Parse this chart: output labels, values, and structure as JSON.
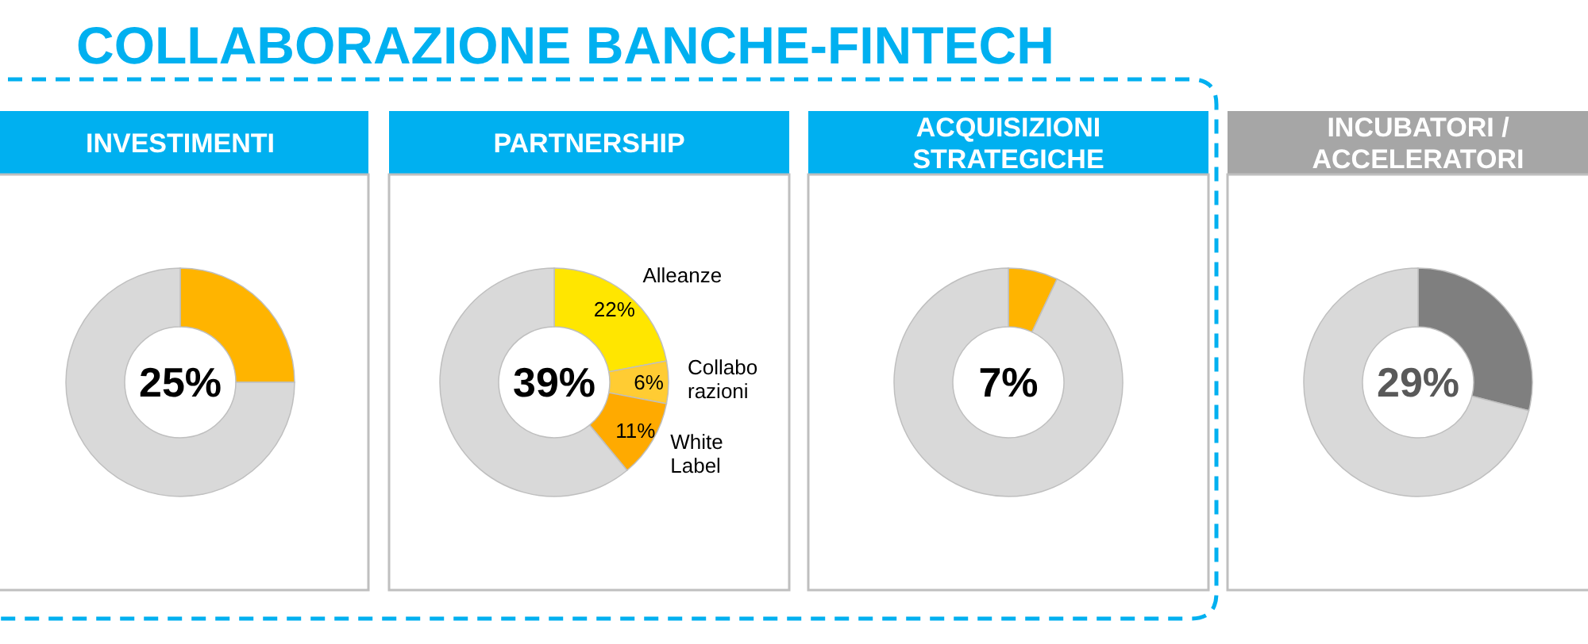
{
  "chart_data": [
    {
      "type": "other",
      "title": "COLLABORAZIONE BANCHE-FINTECH"
    },
    {
      "type": "donut",
      "title": "INVESTIMENTI",
      "categories": [
        null,
        null
      ],
      "values": [
        25,
        75
      ],
      "colors": [
        "#ffb400",
        "#d9d9d9"
      ],
      "annotations": [
        "25%"
      ]
    },
    {
      "type": "donut",
      "title": "PARTNERSHIP",
      "categories": [
        "Alleanze",
        "Collabo\nrazioni",
        "White\nLabel",
        null
      ],
      "values": [
        22,
        6,
        11,
        61
      ],
      "colors": [
        "#ffe600",
        "#ffcc33",
        "#ffaa00",
        "#d9d9d9"
      ],
      "value_labels": [
        "22%",
        "6%",
        "11%",
        null
      ],
      "annotations": [
        "39%"
      ]
    },
    {
      "type": "donut",
      "title": "ACQUISIZIONI\nSTRATEGICHE",
      "categories": [
        null,
        null
      ],
      "values": [
        7,
        93
      ],
      "colors": [
        "#ffb400",
        "#d9d9d9"
      ],
      "annotations": [
        "7%"
      ]
    },
    {
      "type": "donut",
      "title": "INCUBATORI /\nACCELERATORI",
      "categories": [
        null,
        null
      ],
      "values": [
        29,
        71
      ],
      "colors": [
        "#7f7f7f",
        "#d9d9d9"
      ],
      "annotations": [
        "29%"
      ]
    }
  ]
}
